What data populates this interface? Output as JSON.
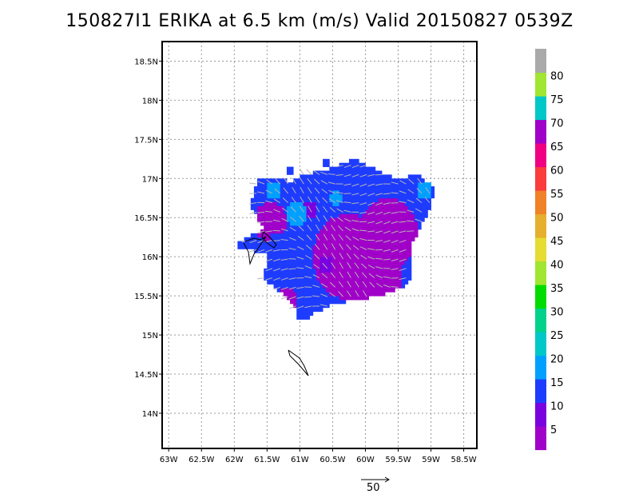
{
  "title": "150827I1 ERIKA at 6.5 km (m/s) Valid 20150827 0539Z",
  "chart_data": {
    "type": "heatmap",
    "xlim": [
      -63.1,
      -58.3
    ],
    "ylim": [
      13.55,
      18.75
    ],
    "x_ticks": [
      -63,
      -62.5,
      -62,
      -61.5,
      -61,
      -60.5,
      -60,
      -59.5,
      -59,
      -58.5
    ],
    "x_tick_labels": [
      "63W",
      "62.5W",
      "62W",
      "61.5W",
      "61W",
      "60.5W",
      "60W",
      "59.5W",
      "59W",
      "58.5W"
    ],
    "y_ticks": [
      14,
      14.5,
      15,
      15.5,
      16,
      16.5,
      17,
      17.5,
      18,
      18.5
    ],
    "y_tick_labels": [
      "14N",
      "14.5N",
      "15N",
      "15.5N",
      "16N",
      "16.5N",
      "17N",
      "17.5N",
      "18N",
      "18.5N"
    ],
    "grid": true,
    "colorbar": {
      "labels": [
        "5",
        "10",
        "15",
        "20",
        "25",
        "30",
        "35",
        "40",
        "45",
        "50",
        "55",
        "60",
        "65",
        "70",
        "75",
        "80"
      ],
      "colors": [
        "#a000c8",
        "#7b00e0",
        "#1e3cff",
        "#00a0ff",
        "#00c8c8",
        "#00d28c",
        "#00dc00",
        "#a0e632",
        "#e6dc32",
        "#e6af2d",
        "#f08228",
        "#fa3c3c",
        "#f00082",
        "#a000c8",
        "#00c8c8",
        "#a0e632",
        "#aaaaaa"
      ]
    },
    "reference_vector": {
      "label": "50",
      "value": 50
    }
  }
}
